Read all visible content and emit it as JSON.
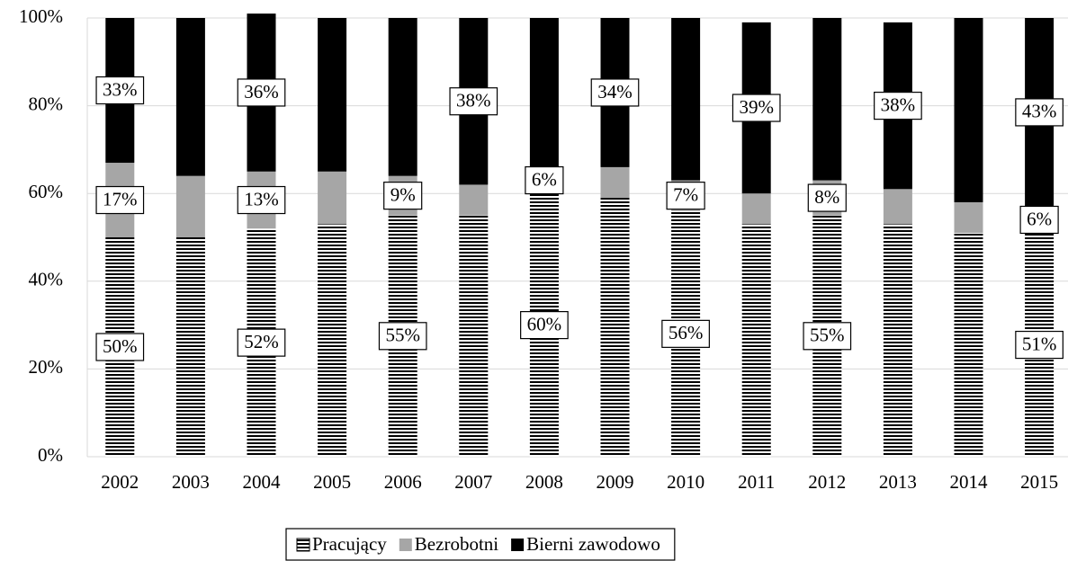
{
  "chart_data": {
    "type": "stacked-bar-100",
    "categories": [
      "2002",
      "2003",
      "2004",
      "2005",
      "2006",
      "2007",
      "2008",
      "2009",
      "2010",
      "2011",
      "2012",
      "2013",
      "2014",
      "2015"
    ],
    "series": [
      {
        "name": "Pracujący",
        "color": "#000000",
        "hatch": "horizontal",
        "values": [
          50,
          50,
          52,
          53,
          55,
          55,
          60,
          59,
          56,
          53,
          55,
          53,
          51,
          51
        ],
        "value_labels": [
          "50%",
          null,
          "52%",
          null,
          "55%",
          null,
          "60%",
          null,
          "56%",
          null,
          "55%",
          null,
          null,
          "51%"
        ]
      },
      {
        "name": "Bezrobotni",
        "color": "#a6a6a6",
        "values": [
          17,
          14,
          13,
          12,
          9,
          7,
          6,
          7,
          7,
          7,
          8,
          8,
          7,
          6
        ],
        "value_labels": [
          "17%",
          null,
          "13%",
          null,
          "9%",
          null,
          "6%",
          null,
          "7%",
          null,
          "8%",
          null,
          null,
          "6%"
        ]
      },
      {
        "name": "Bierni zawodowo",
        "color": "#000000",
        "values": [
          33,
          36,
          36,
          35,
          36,
          38,
          34,
          34,
          37,
          39,
          37,
          38,
          42,
          43
        ],
        "value_labels": [
          "33%",
          null,
          "36%",
          null,
          null,
          "38%",
          null,
          "34%",
          null,
          "39%",
          null,
          "38%",
          null,
          "43%"
        ]
      }
    ],
    "ylim": [
      0,
      100
    ],
    "yticks": [
      {
        "value": 0,
        "label": "0%"
      },
      {
        "value": 20,
        "label": "20%"
      },
      {
        "value": 40,
        "label": "40%"
      },
      {
        "value": 60,
        "label": "60%"
      },
      {
        "value": 80,
        "label": "80%"
      },
      {
        "value": 100,
        "label": "100%"
      }
    ],
    "grid": true,
    "legend": "bottom"
  }
}
